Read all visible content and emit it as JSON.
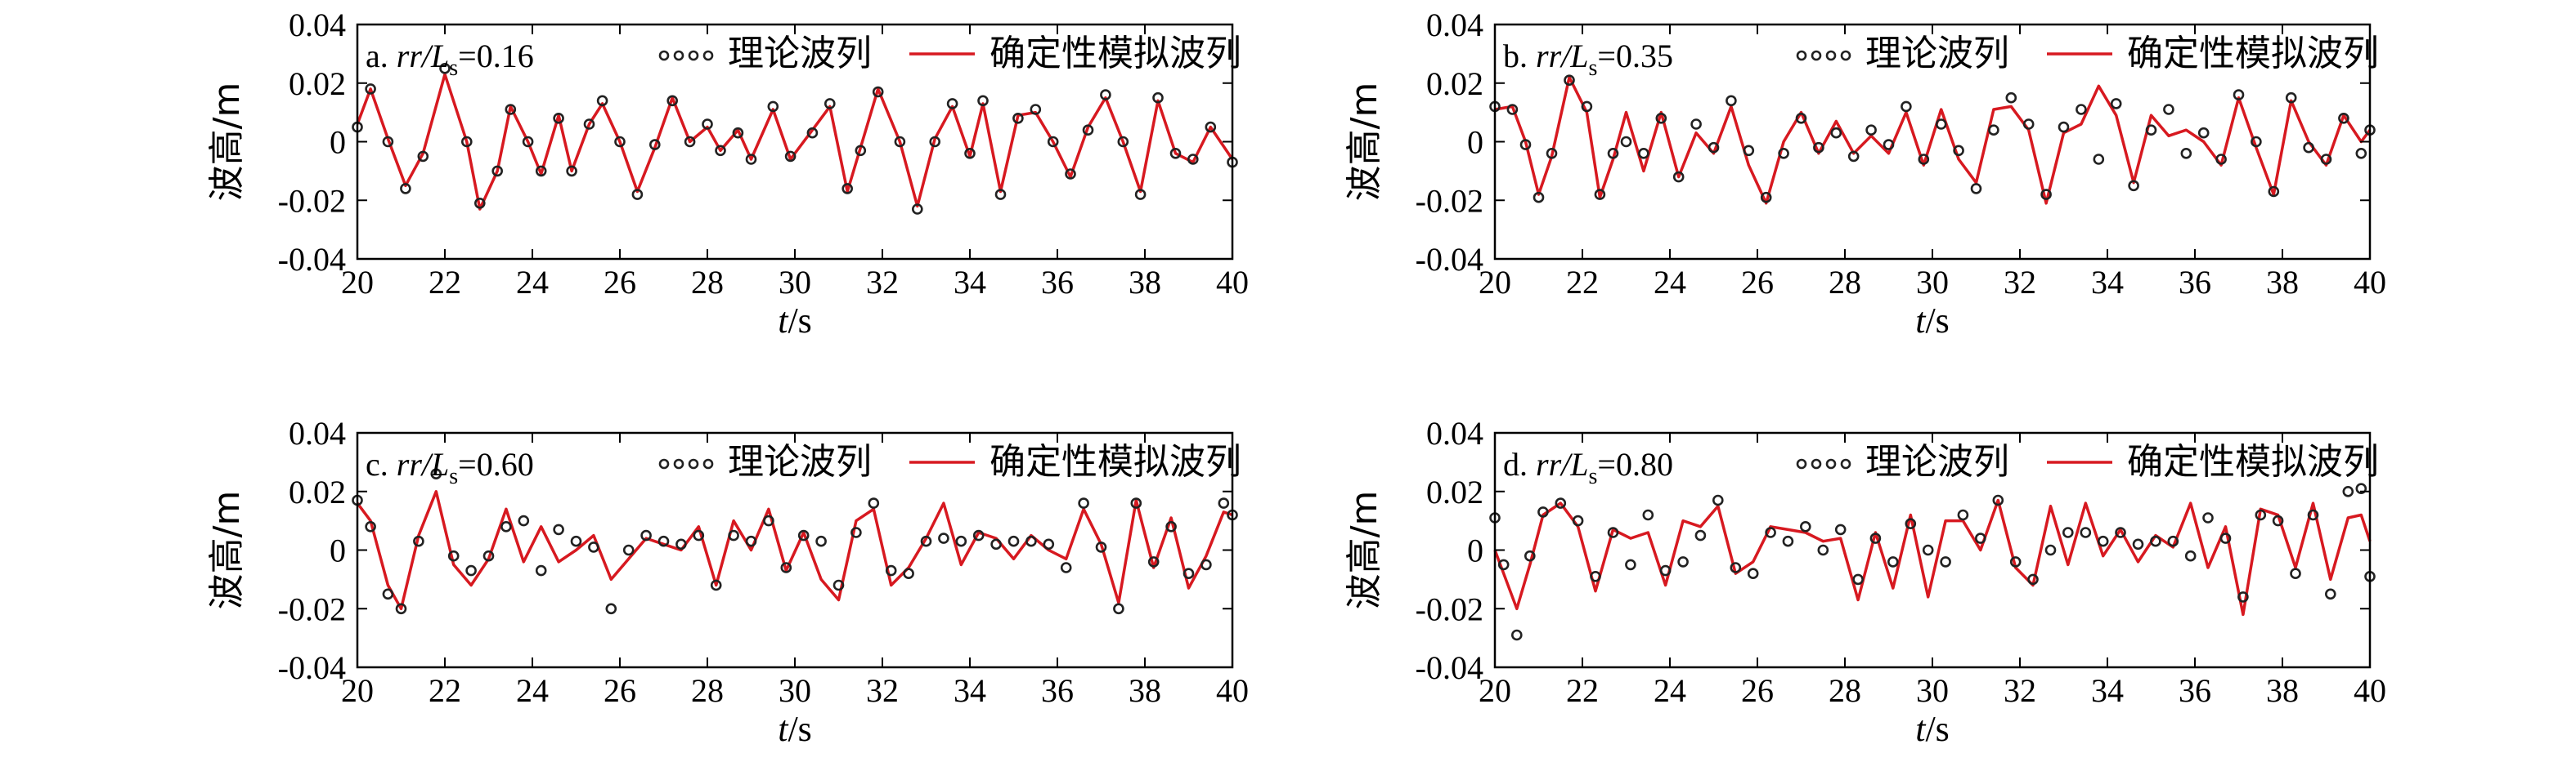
{
  "colors": {
    "theory": "#222222",
    "simulated": "#d71920",
    "axis": "#000000"
  },
  "legend": {
    "theory": "理论波列",
    "simulated": "确定性模拟波列"
  },
  "axis_common": {
    "xlabel_italic": "t",
    "xlabel_rest": "/s",
    "ylabel": "波高/m",
    "x_ticks": [
      "20",
      "22",
      "24",
      "26",
      "28",
      "30",
      "32",
      "34",
      "36",
      "38",
      "40"
    ],
    "y_ticks": [
      "0.04",
      "0.02",
      "0",
      "-0.02",
      "-0.04"
    ]
  },
  "chart_data": [
    {
      "type": "line",
      "label_prefix": "a. ",
      "label_ratio": "rr/L",
      "label_sub": "s",
      "label_value": "=0.16",
      "xlim": [
        20,
        40
      ],
      "ylim": [
        -0.04,
        0.04
      ],
      "xlabel": "t/s",
      "ylabel": "波高/m",
      "series": [
        {
          "name": "理论波列",
          "style": "circles",
          "x": [
            20.0,
            20.3,
            20.7,
            21.1,
            21.5,
            22.0,
            22.5,
            22.8,
            23.2,
            23.5,
            23.9,
            24.2,
            24.6,
            24.9,
            25.3,
            25.6,
            26.0,
            26.4,
            26.8,
            27.2,
            27.6,
            28.0,
            28.3,
            28.7,
            29.0,
            29.5,
            29.9,
            30.4,
            30.8,
            31.2,
            31.5,
            31.9,
            32.4,
            32.8,
            33.2,
            33.6,
            34.0,
            34.3,
            34.7,
            35.1,
            35.5,
            35.9,
            36.3,
            36.7,
            37.1,
            37.5,
            37.9,
            38.3,
            38.7,
            39.1,
            39.5,
            40.0
          ],
          "y": [
            0.005,
            0.018,
            0.0,
            -0.016,
            -0.005,
            0.025,
            0.0,
            -0.021,
            -0.01,
            0.011,
            0.0,
            -0.01,
            0.008,
            -0.01,
            0.006,
            0.014,
            0.0,
            -0.018,
            -0.001,
            0.014,
            0.0,
            0.006,
            -0.003,
            0.003,
            -0.006,
            0.012,
            -0.005,
            0.003,
            0.013,
            -0.016,
            -0.003,
            0.017,
            0.0,
            -0.023,
            0.0,
            0.013,
            -0.004,
            0.014,
            -0.018,
            0.008,
            0.011,
            0.0,
            -0.011,
            0.004,
            0.016,
            0.0,
            -0.018,
            0.015,
            -0.004,
            -0.006,
            0.005,
            -0.007
          ]
        },
        {
          "name": "确定性模拟波列",
          "style": "line",
          "x": [
            20.0,
            20.3,
            20.7,
            21.1,
            21.5,
            22.0,
            22.5,
            22.8,
            23.2,
            23.5,
            23.9,
            24.2,
            24.6,
            24.9,
            25.3,
            25.6,
            26.0,
            26.4,
            26.8,
            27.2,
            27.6,
            28.0,
            28.3,
            28.7,
            29.0,
            29.5,
            29.9,
            30.4,
            30.8,
            31.2,
            31.5,
            31.9,
            32.4,
            32.8,
            33.2,
            33.6,
            34.0,
            34.3,
            34.7,
            35.1,
            35.5,
            35.9,
            36.3,
            36.7,
            37.1,
            37.5,
            37.9,
            38.3,
            38.7,
            39.1,
            39.5,
            40.0
          ],
          "y": [
            0.006,
            0.018,
            0.001,
            -0.015,
            -0.004,
            0.023,
            0.0,
            -0.023,
            -0.01,
            0.012,
            0.0,
            -0.011,
            0.009,
            -0.01,
            0.006,
            0.013,
            0.0,
            -0.017,
            -0.002,
            0.015,
            0.0,
            0.005,
            -0.003,
            0.004,
            -0.006,
            0.011,
            -0.006,
            0.004,
            0.012,
            -0.017,
            -0.002,
            0.018,
            0.0,
            -0.022,
            0.001,
            0.012,
            -0.005,
            0.013,
            -0.017,
            0.009,
            0.01,
            0.0,
            -0.012,
            0.005,
            0.015,
            0.0,
            -0.017,
            0.014,
            -0.004,
            -0.007,
            0.005,
            -0.006
          ]
        }
      ]
    },
    {
      "type": "line",
      "label_prefix": "b. ",
      "label_ratio": "rr/L",
      "label_sub": "s",
      "label_value": "=0.35",
      "xlim": [
        20,
        40
      ],
      "ylim": [
        -0.04,
        0.04
      ],
      "xlabel": "t/s",
      "ylabel": "波高/m",
      "series": [
        {
          "name": "理论波列",
          "style": "circles",
          "x": [
            20.0,
            20.4,
            20.7,
            21.0,
            21.3,
            21.7,
            22.1,
            22.4,
            22.7,
            23.0,
            23.4,
            23.8,
            24.2,
            24.6,
            25.0,
            25.4,
            25.8,
            26.2,
            26.6,
            27.0,
            27.4,
            27.8,
            28.2,
            28.6,
            29.0,
            29.4,
            29.8,
            30.2,
            30.6,
            31.0,
            31.4,
            31.8,
            32.2,
            32.6,
            33.0,
            33.4,
            33.8,
            34.2,
            34.6,
            35.0,
            35.4,
            35.8,
            36.2,
            36.6,
            37.0,
            37.4,
            37.8,
            38.2,
            38.6,
            39.0,
            39.4,
            39.8,
            40.0
          ],
          "y": [
            0.012,
            0.011,
            -0.001,
            -0.019,
            -0.004,
            0.021,
            0.012,
            -0.018,
            -0.004,
            0.0,
            -0.004,
            0.008,
            -0.012,
            0.006,
            -0.002,
            0.014,
            -0.003,
            -0.019,
            -0.004,
            0.008,
            -0.002,
            0.003,
            -0.005,
            0.004,
            -0.001,
            0.012,
            -0.006,
            0.006,
            -0.003,
            -0.016,
            0.004,
            0.015,
            0.006,
            -0.018,
            0.005,
            0.011,
            -0.006,
            0.013,
            -0.015,
            0.004,
            0.011,
            -0.004,
            0.003,
            -0.006,
            0.016,
            0.0,
            -0.017,
            0.015,
            -0.002,
            -0.006,
            0.008,
            -0.004,
            0.004
          ]
        },
        {
          "name": "确定性模拟波列",
          "style": "line",
          "x": [
            20.0,
            20.4,
            20.7,
            21.0,
            21.3,
            21.7,
            22.1,
            22.4,
            22.7,
            23.0,
            23.4,
            23.8,
            24.2,
            24.6,
            25.0,
            25.4,
            25.8,
            26.2,
            26.6,
            27.0,
            27.4,
            27.8,
            28.2,
            28.6,
            29.0,
            29.4,
            29.8,
            30.2,
            30.6,
            31.0,
            31.4,
            31.8,
            32.2,
            32.6,
            33.0,
            33.4,
            33.8,
            34.2,
            34.6,
            35.0,
            35.4,
            35.8,
            36.2,
            36.6,
            37.0,
            37.4,
            37.8,
            38.2,
            38.6,
            39.0,
            39.4,
            39.8,
            40.0
          ],
          "y": [
            0.011,
            0.012,
            0.0,
            -0.018,
            -0.005,
            0.022,
            0.01,
            -0.019,
            -0.006,
            0.01,
            -0.01,
            0.01,
            -0.012,
            0.003,
            -0.004,
            0.012,
            -0.008,
            -0.021,
            0.0,
            0.01,
            -0.004,
            0.007,
            -0.004,
            0.002,
            -0.004,
            0.01,
            -0.008,
            0.011,
            -0.006,
            -0.014,
            0.011,
            0.012,
            0.004,
            -0.021,
            0.003,
            0.006,
            0.019,
            0.009,
            -0.014,
            0.009,
            0.002,
            0.004,
            0.0,
            -0.008,
            0.015,
            -0.002,
            -0.018,
            0.014,
            0.0,
            -0.008,
            0.009,
            0.0,
            0.004
          ]
        }
      ]
    },
    {
      "type": "line",
      "label_prefix": "c. ",
      "label_ratio": "rr/L",
      "label_sub": "s",
      "label_value": "=0.60",
      "xlim": [
        20,
        40
      ],
      "ylim": [
        -0.04,
        0.04
      ],
      "xlabel": "t/s",
      "ylabel": "波高/m",
      "series": [
        {
          "name": "理论波列",
          "style": "circles",
          "x": [
            20.0,
            20.3,
            20.7,
            21.0,
            21.4,
            21.8,
            22.2,
            22.6,
            23.0,
            23.4,
            23.8,
            24.2,
            24.6,
            25.0,
            25.4,
            25.8,
            26.2,
            26.6,
            27.0,
            27.4,
            27.8,
            28.2,
            28.6,
            29.0,
            29.4,
            29.8,
            30.2,
            30.6,
            31.0,
            31.4,
            31.8,
            32.2,
            32.6,
            33.0,
            33.4,
            33.8,
            34.2,
            34.6,
            35.0,
            35.4,
            35.8,
            36.2,
            36.6,
            37.0,
            37.4,
            37.8,
            38.2,
            38.6,
            39.0,
            39.4,
            39.8,
            40.0
          ],
          "y": [
            0.017,
            0.008,
            -0.015,
            -0.02,
            0.003,
            0.026,
            -0.002,
            -0.007,
            -0.002,
            0.008,
            0.01,
            -0.007,
            0.007,
            0.003,
            0.001,
            -0.02,
            0.0,
            0.005,
            0.003,
            0.002,
            0.005,
            -0.012,
            0.005,
            0.003,
            0.01,
            -0.006,
            0.005,
            0.003,
            -0.012,
            0.006,
            0.016,
            -0.007,
            -0.008,
            0.003,
            0.004,
            0.003,
            0.005,
            0.002,
            0.003,
            0.003,
            0.002,
            -0.006,
            0.016,
            0.001,
            -0.02,
            0.016,
            -0.004,
            0.008,
            -0.008,
            -0.005,
            0.016,
            0.012
          ]
        },
        {
          "name": "确定性模拟波列",
          "style": "line",
          "x": [
            20.0,
            20.3,
            20.7,
            21.0,
            21.4,
            21.8,
            22.2,
            22.6,
            23.0,
            23.4,
            23.8,
            24.2,
            24.6,
            25.0,
            25.4,
            25.8,
            26.2,
            26.6,
            27.0,
            27.4,
            27.8,
            28.2,
            28.6,
            29.0,
            29.4,
            29.8,
            30.2,
            30.6,
            31.0,
            31.4,
            31.8,
            32.2,
            32.6,
            33.0,
            33.4,
            33.8,
            34.2,
            34.6,
            35.0,
            35.4,
            35.8,
            36.2,
            36.6,
            37.0,
            37.4,
            37.8,
            38.2,
            38.6,
            39.0,
            39.4,
            39.8,
            40.0
          ],
          "y": [
            0.016,
            0.01,
            -0.012,
            -0.02,
            0.005,
            0.02,
            -0.005,
            -0.012,
            -0.003,
            0.014,
            -0.004,
            0.008,
            -0.004,
            0.0,
            0.005,
            -0.01,
            -0.003,
            0.004,
            0.002,
            0.0,
            0.008,
            -0.012,
            0.01,
            0.0,
            0.014,
            -0.007,
            0.006,
            -0.01,
            -0.017,
            0.01,
            0.014,
            -0.012,
            -0.006,
            0.004,
            0.016,
            -0.005,
            0.006,
            0.004,
            -0.003,
            0.005,
            0.0,
            -0.003,
            0.014,
            0.002,
            -0.018,
            0.017,
            -0.006,
            0.011,
            -0.013,
            -0.002,
            0.013,
            0.012
          ]
        }
      ]
    },
    {
      "type": "line",
      "label_prefix": "d. ",
      "label_ratio": "rr/L",
      "label_sub": "s",
      "label_value": "=0.80",
      "xlim": [
        20,
        40
      ],
      "ylim": [
        -0.04,
        0.04
      ],
      "xlabel": "t/s",
      "ylabel": "波高/m",
      "series": [
        {
          "name": "理论波列",
          "style": "circles",
          "x": [
            20.0,
            20.2,
            20.5,
            20.8,
            21.1,
            21.5,
            21.9,
            22.3,
            22.7,
            23.1,
            23.5,
            23.9,
            24.3,
            24.7,
            25.1,
            25.5,
            25.9,
            26.3,
            26.7,
            27.1,
            27.5,
            27.9,
            28.3,
            28.7,
            29.1,
            29.5,
            29.9,
            30.3,
            30.7,
            31.1,
            31.5,
            31.9,
            32.3,
            32.7,
            33.1,
            33.5,
            33.9,
            34.3,
            34.7,
            35.1,
            35.5,
            35.9,
            36.3,
            36.7,
            37.1,
            37.5,
            37.9,
            38.3,
            38.7,
            39.1,
            39.5,
            39.8,
            40.0
          ],
          "y": [
            0.011,
            -0.005,
            -0.029,
            -0.002,
            0.013,
            0.016,
            0.01,
            -0.009,
            0.006,
            -0.005,
            0.012,
            -0.007,
            -0.004,
            0.005,
            0.017,
            -0.006,
            -0.008,
            0.006,
            0.003,
            0.008,
            0.0,
            0.007,
            -0.01,
            0.004,
            -0.004,
            0.009,
            0.0,
            -0.004,
            0.012,
            0.004,
            0.017,
            -0.004,
            -0.01,
            0.0,
            0.006,
            0.006,
            0.003,
            0.006,
            0.002,
            0.003,
            0.003,
            -0.002,
            0.011,
            0.004,
            -0.016,
            0.012,
            0.01,
            -0.008,
            0.012,
            -0.015,
            0.02,
            0.021,
            -0.009
          ]
        },
        {
          "name": "确定性模拟波列",
          "style": "line",
          "x": [
            20.0,
            20.2,
            20.5,
            20.8,
            21.1,
            21.5,
            21.9,
            22.3,
            22.7,
            23.1,
            23.5,
            23.9,
            24.3,
            24.7,
            25.1,
            25.5,
            25.9,
            26.3,
            26.7,
            27.1,
            27.5,
            27.9,
            28.3,
            28.7,
            29.1,
            29.5,
            29.9,
            30.3,
            30.7,
            31.1,
            31.5,
            31.9,
            32.3,
            32.7,
            33.1,
            33.5,
            33.9,
            34.3,
            34.7,
            35.1,
            35.5,
            35.9,
            36.3,
            36.7,
            37.1,
            37.5,
            37.9,
            38.3,
            38.7,
            39.1,
            39.5,
            39.8,
            40.0
          ],
          "y": [
            0.0,
            -0.008,
            -0.02,
            -0.005,
            0.012,
            0.016,
            0.008,
            -0.014,
            0.007,
            0.004,
            0.006,
            -0.012,
            0.01,
            0.008,
            0.015,
            -0.008,
            -0.004,
            0.008,
            0.007,
            0.006,
            0.003,
            0.004,
            -0.017,
            0.006,
            -0.013,
            0.012,
            -0.016,
            0.01,
            0.01,
            0.0,
            0.017,
            -0.006,
            -0.012,
            0.015,
            -0.005,
            0.016,
            -0.002,
            0.007,
            -0.004,
            0.005,
            0.001,
            0.016,
            -0.006,
            0.008,
            -0.022,
            0.014,
            0.012,
            -0.006,
            0.016,
            -0.01,
            0.011,
            0.012,
            0.003
          ]
        }
      ]
    }
  ]
}
